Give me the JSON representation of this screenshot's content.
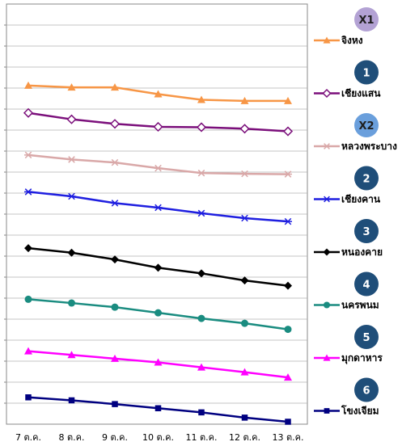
{
  "chart_data": {
    "type": "line",
    "title": "",
    "xlabel": "",
    "ylabel": "",
    "grid": true,
    "legend_placement": "right",
    "categories": [
      "7 ต.ค.",
      "8 ต.ค.",
      "9 ต.ค.",
      "10 ต.ค.",
      "11 ต.ค.",
      "12 ต.ค.",
      "13 ต.ค."
    ],
    "series": [
      {
        "name": "จิงหง",
        "badge": "X1",
        "badge_color": "#b3a2d4",
        "badge_text_color": "#1f1f1f",
        "color": "#f79646",
        "marker": "triangle",
        "values": [
          0.895,
          0.89,
          0.89,
          0.872,
          0.857,
          0.854,
          0.854
        ]
      },
      {
        "name": "เชียงแสน",
        "badge": "1",
        "badge_color": "#1f4e79",
        "badge_text_color": "#ffffff",
        "color": "#7b0f7b",
        "marker": "diamond-open",
        "values": [
          0.822,
          0.805,
          0.793,
          0.785,
          0.784,
          0.78,
          0.773
        ]
      },
      {
        "name": "หลวงพระบาง",
        "badge": "X2",
        "badge_color": "#6a9fdc",
        "badge_text_color": "#1f1f1f",
        "color": "#d9a8a8",
        "marker": "asterisk",
        "values": [
          0.71,
          0.698,
          0.69,
          0.675,
          0.662,
          0.66,
          0.659
        ]
      },
      {
        "name": "เชียงคาน",
        "badge": "2",
        "badge_color": "#1f4e79",
        "badge_text_color": "#ffffff",
        "color": "#1f1fe0",
        "marker": "asterisk",
        "values": [
          0.612,
          0.6,
          0.582,
          0.57,
          0.555,
          0.542,
          0.533
        ]
      },
      {
        "name": "หนองคาย",
        "badge": "3",
        "badge_color": "#1f4e79",
        "badge_text_color": "#ffffff",
        "color": "#000000",
        "marker": "diamond",
        "values": [
          0.462,
          0.45,
          0.432,
          0.41,
          0.395,
          0.376,
          0.362
        ]
      },
      {
        "name": "นครพนม",
        "badge": "4",
        "badge_color": "#1f4e79",
        "badge_text_color": "#ffffff",
        "color": "#1a8c80",
        "marker": "circle",
        "values": [
          0.326,
          0.316,
          0.305,
          0.29,
          0.275,
          0.262,
          0.246
        ]
      },
      {
        "name": "มุกดาหาร",
        "badge": "5",
        "badge_color": "#1f4e79",
        "badge_text_color": "#ffffff",
        "color": "#ff00ff",
        "marker": "triangle",
        "values": [
          0.188,
          0.178,
          0.168,
          0.158,
          0.145,
          0.132,
          0.118
        ]
      },
      {
        "name": "โขงเจียม",
        "badge": "6",
        "badge_color": "#1f4e79",
        "badge_text_color": "#ffffff",
        "color": "#000080",
        "marker": "square",
        "values": [
          0.065,
          0.057,
          0.047,
          0.036,
          0.025,
          0.011,
          0.0
        ]
      }
    ],
    "ylim": [
      0,
      1
    ],
    "yticks_count": 20
  }
}
